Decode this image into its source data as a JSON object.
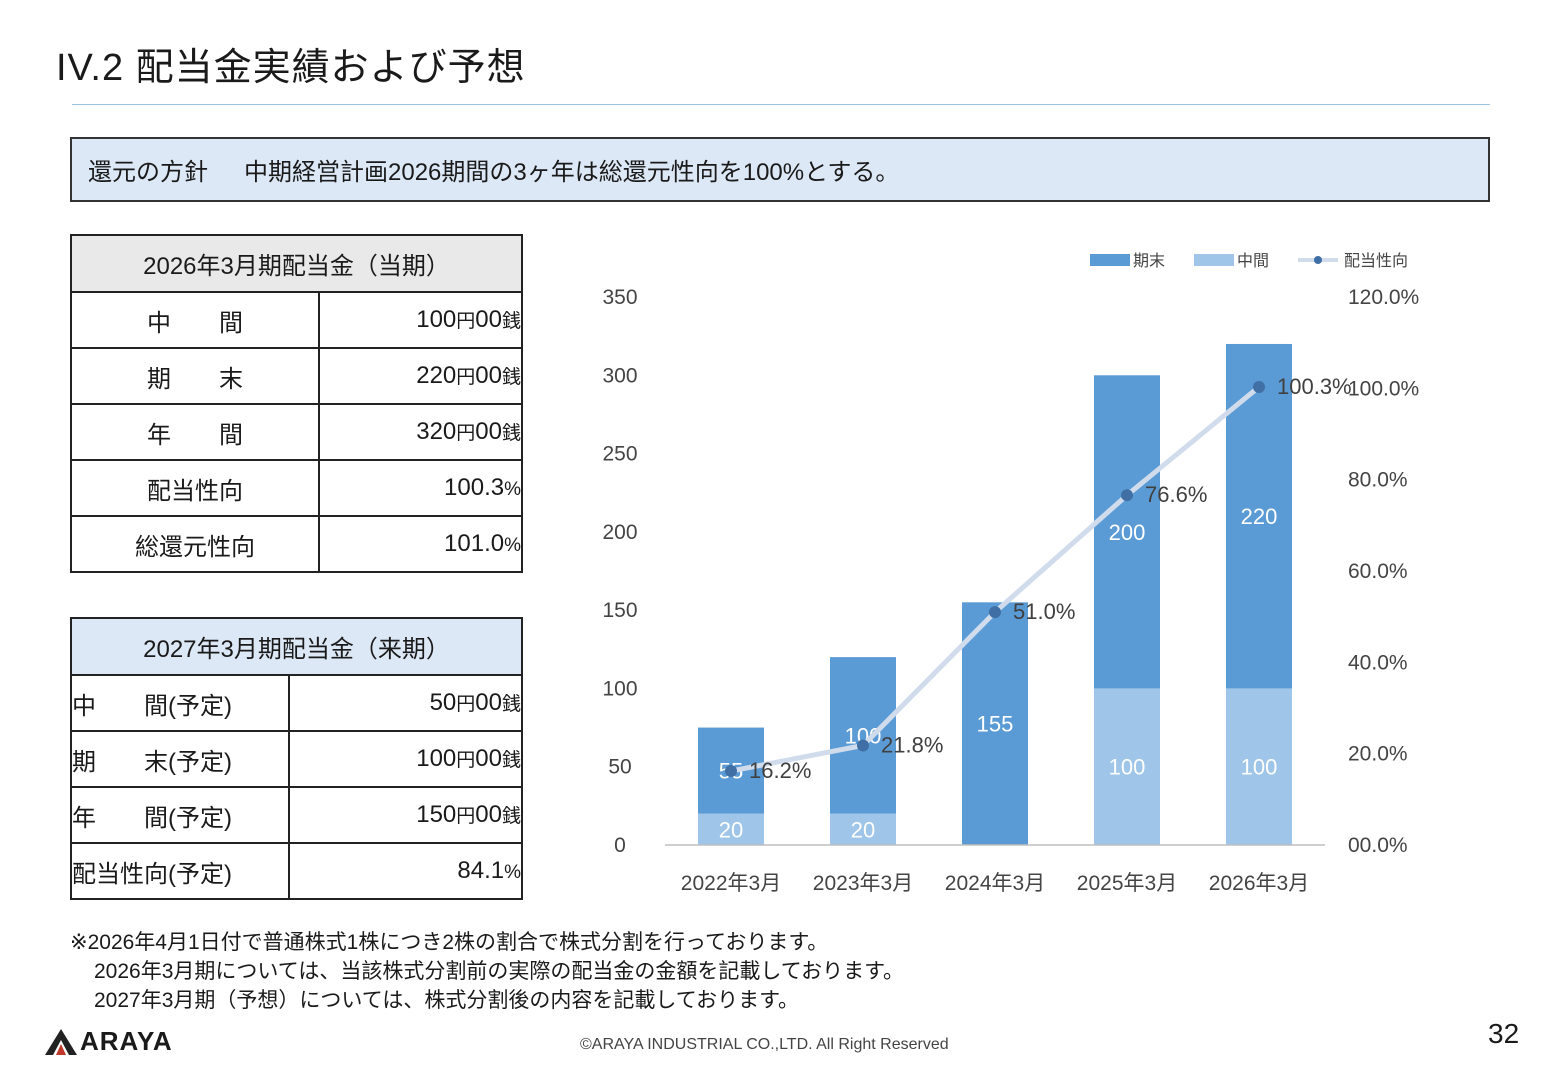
{
  "header": {
    "title": "IV.2 配当金実績および予想"
  },
  "policy": {
    "label": "還元の方針",
    "text": "中期経営計画2026期間の3ヶ年は総還元性向を100%とする。"
  },
  "current_table": {
    "header": "2026年3月期配当金（当期）",
    "rows": [
      {
        "label": "中　　間",
        "value": "100",
        "unit1": "円",
        "value2": "00",
        "unit2": "銭"
      },
      {
        "label": "期　　末",
        "value": "220",
        "unit1": "円",
        "value2": "00",
        "unit2": "銭"
      },
      {
        "label": "年　　間",
        "value": "320",
        "unit1": "円",
        "value2": "00",
        "unit2": "銭"
      },
      {
        "label": "配当性向",
        "value": "100.3",
        "unit1": "%"
      },
      {
        "label": "総還元性向",
        "value": "101.0",
        "unit1": "%"
      }
    ]
  },
  "next_table": {
    "header": "2027年3月期配当金（来期）",
    "rows": [
      {
        "label": "中　　間(予定)",
        "value": "50",
        "unit1": "円",
        "value2": "00",
        "unit2": "銭"
      },
      {
        "label": "期　　末(予定)",
        "value": "100",
        "unit1": "円",
        "value2": "00",
        "unit2": "銭"
      },
      {
        "label": "年　　間(予定)",
        "value": "150",
        "unit1": "円",
        "value2": "00",
        "unit2": "銭"
      },
      {
        "label": "配当性向(予定)",
        "value": "84.1",
        "unit1": "%"
      }
    ]
  },
  "chart_data": {
    "type": "bar",
    "stacked": true,
    "categories": [
      "2022年3月",
      "2023年3月",
      "2024年3月",
      "2025年3月",
      "2026年3月"
    ],
    "series": [
      {
        "name": "中間",
        "values": [
          20,
          20,
          0,
          100,
          100
        ],
        "labels": [
          "20",
          "20",
          "",
          "100",
          "100"
        ],
        "color": "#9fc5e8"
      },
      {
        "name": "期末",
        "values": [
          55,
          100,
          155,
          200,
          220
        ],
        "labels": [
          "55",
          "100",
          "155",
          "200",
          "220"
        ],
        "color": "#5b9bd5"
      }
    ],
    "line": {
      "name": "配当性向",
      "values": [
        16.2,
        21.8,
        51.0,
        76.6,
        100.3
      ],
      "labels": [
        "16.2%",
        "21.8%",
        "51.0%",
        "76.6%",
        "100.3%"
      ],
      "color": "#d0dcec",
      "marker_color": "#3f6fa5"
    },
    "y_left": {
      "min": 0,
      "max": 350,
      "ticks": [
        "0",
        "50",
        "100",
        "150",
        "200",
        "250",
        "300",
        "350"
      ]
    },
    "y_right": {
      "min": 0,
      "max": 120,
      "ticks": [
        "00.0%",
        "20.0%",
        "40.0%",
        "60.0%",
        "80.0%",
        "100.0%",
        "120.0%"
      ]
    },
    "legend": {
      "position": "top-right",
      "items": [
        "期末",
        "中間",
        "配当性向"
      ]
    },
    "grid": false
  },
  "notes": [
    "※2026年4月1日付で普通株式1株につき2株の割合で株式分割を行っております。",
    "2026年3月期については、当該株式分割前の実際の配当金の金額を記載しております。",
    "2027年3月期（予想）については、株式分割後の内容を記載しております。"
  ],
  "footer": {
    "logo_text": "ARAYA",
    "copyright": "©ARAYA INDUSTRIAL CO.,LTD. All Right Reserved",
    "page": "32"
  }
}
